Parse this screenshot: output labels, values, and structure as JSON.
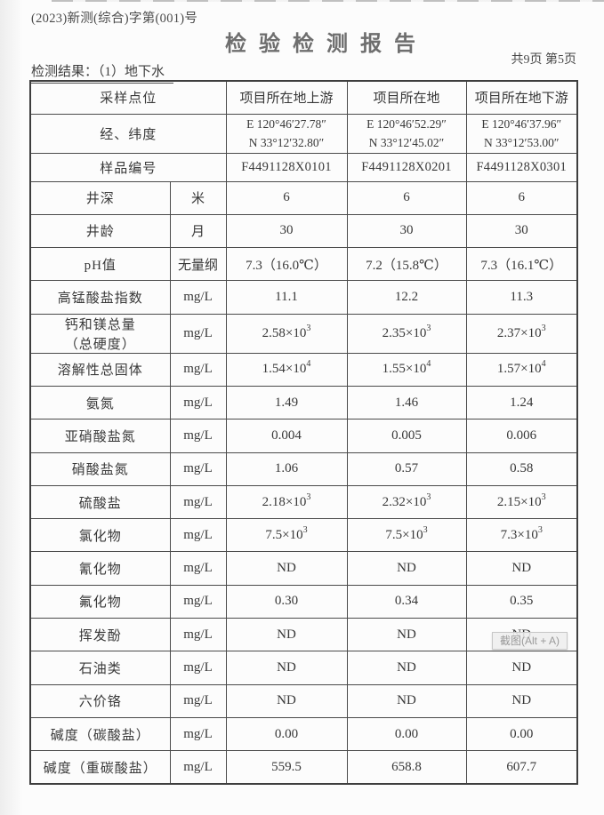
{
  "page": {
    "report_no": "(2023)新测(综合)字第(001)号",
    "title": "检验检测报告",
    "page_info": "共9页 第5页",
    "section_label": "检测结果：（1）地下水"
  },
  "table": {
    "header": {
      "label": "采样点位",
      "locations": [
        "项目所在地上游",
        "项目所在地",
        "项目所在地下游"
      ]
    },
    "coordinates": {
      "label": "经、纬度",
      "values": [
        {
          "e": "E 120°46′27.78″",
          "n": "N 33°12′32.80″"
        },
        {
          "e": "E 120°46′52.29″",
          "n": "N 33°12′45.02″"
        },
        {
          "e": "E 120°46′37.96″",
          "n": "N 33°12′53.00″"
        }
      ]
    },
    "sample_no": {
      "label": "样品编号",
      "values": [
        "F4491128X0101",
        "F4491128X0201",
        "F4491128X0301"
      ]
    },
    "rows": [
      {
        "param": "井深",
        "unit": "米",
        "values": [
          "6",
          "6",
          "6"
        ]
      },
      {
        "param": "井龄",
        "unit": "月",
        "values": [
          "30",
          "30",
          "30"
        ]
      },
      {
        "param": "pH值",
        "unit": "无量纲",
        "values": [
          "7.3（16.0℃）",
          "7.2（15.8℃）",
          "7.3（16.1℃）"
        ]
      },
      {
        "param": "高锰酸盐指数",
        "unit": "mg/L",
        "values": [
          "11.1",
          "12.2",
          "11.3"
        ]
      },
      {
        "param": "钙和镁总量",
        "param2": "（总硬度）",
        "unit": "mg/L",
        "values": [
          "2.58×10^3",
          "2.35×10^3",
          "2.37×10^3"
        ]
      },
      {
        "param": "溶解性总固体",
        "unit": "mg/L",
        "values": [
          "1.54×10^4",
          "1.55×10^4",
          "1.57×10^4"
        ]
      },
      {
        "param": "氨氮",
        "unit": "mg/L",
        "values": [
          "1.49",
          "1.46",
          "1.24"
        ]
      },
      {
        "param": "亚硝酸盐氮",
        "unit": "mg/L",
        "values": [
          "0.004",
          "0.005",
          "0.006"
        ]
      },
      {
        "param": "硝酸盐氮",
        "unit": "mg/L",
        "values": [
          "1.06",
          "0.57",
          "0.58"
        ]
      },
      {
        "param": "硫酸盐",
        "unit": "mg/L",
        "values": [
          "2.18×10^3",
          "2.32×10^3",
          "2.15×10^3"
        ]
      },
      {
        "param": "氯化物",
        "unit": "mg/L",
        "values": [
          "7.5×10^3",
          "7.5×10^3",
          "7.3×10^3"
        ]
      },
      {
        "param": "氰化物",
        "unit": "mg/L",
        "values": [
          "ND",
          "ND",
          "ND"
        ]
      },
      {
        "param": "氟化物",
        "unit": "mg/L",
        "values": [
          "0.30",
          "0.34",
          "0.35"
        ]
      },
      {
        "param": "挥发酚",
        "unit": "mg/L",
        "values": [
          "ND",
          "ND",
          "ND"
        ]
      },
      {
        "param": "石油类",
        "unit": "mg/L",
        "values": [
          "ND",
          "ND",
          "ND"
        ]
      },
      {
        "param": "六价铬",
        "unit": "mg/L",
        "values": [
          "ND",
          "ND",
          "ND"
        ]
      },
      {
        "param": "碱度（碳酸盐）",
        "unit": "mg/L",
        "values": [
          "0.00",
          "0.00",
          "0.00"
        ]
      },
      {
        "param": "碱度（重碳酸盐）",
        "unit": "mg/L",
        "values": [
          "559.5",
          "658.8",
          "607.7"
        ]
      }
    ]
  },
  "overlay": {
    "screenshot_tool_label": "截图(Alt + A)"
  }
}
